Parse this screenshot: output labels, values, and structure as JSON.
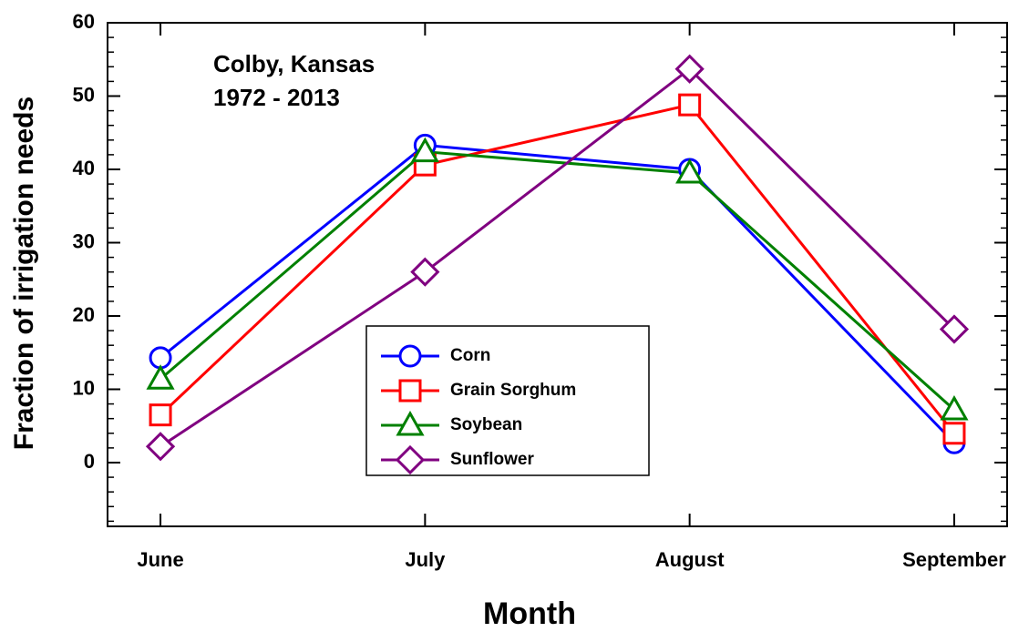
{
  "chart_data": {
    "type": "line",
    "annotation": [
      "Colby, Kansas",
      "1972 - 2013"
    ],
    "x_label": "Month",
    "y_label": "Fraction of irrigation needs",
    "categories": [
      "June",
      "July",
      "August",
      "September"
    ],
    "series": [
      {
        "name": "Corn",
        "color": "#0000ff",
        "marker": "circle",
        "values": [
          14.3,
          43.3,
          40.0,
          2.7
        ]
      },
      {
        "name": "Grain Sorghum",
        "color": "#ff0000",
        "marker": "square",
        "values": [
          6.5,
          40.6,
          48.8,
          4.0
        ]
      },
      {
        "name": "Soybean",
        "color": "#008000",
        "marker": "triangle",
        "values": [
          11.4,
          42.4,
          39.5,
          7.2
        ]
      },
      {
        "name": "Sunflower",
        "color": "#800080",
        "marker": "diamond",
        "values": [
          2.2,
          26.0,
          53.7,
          18.2
        ]
      }
    ],
    "ylim": [
      -8.7,
      60
    ],
    "yticks": [
      0,
      10,
      20,
      30,
      40,
      50,
      60
    ],
    "grid": false
  }
}
